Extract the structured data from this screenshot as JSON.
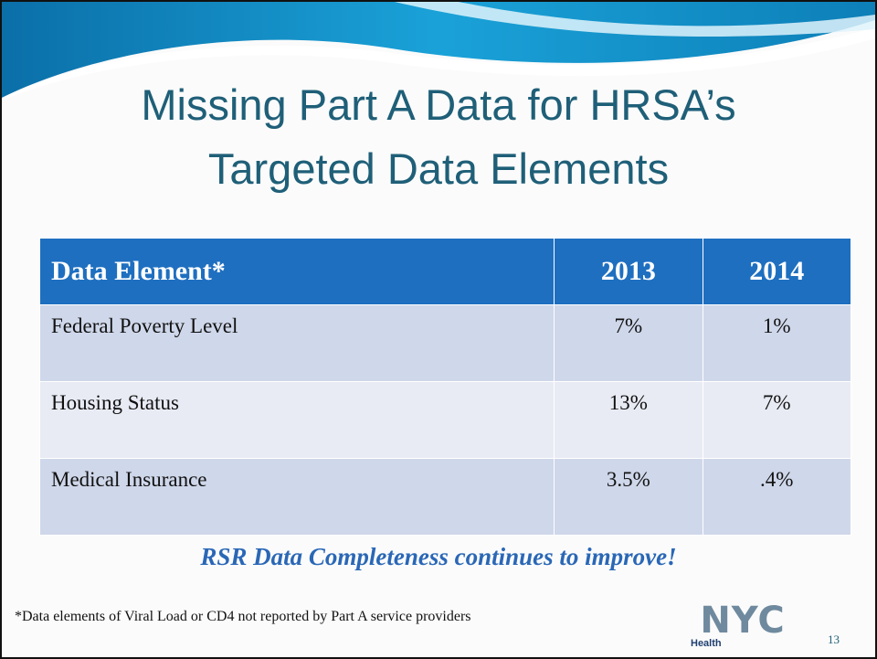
{
  "slide": {
    "title_lines": [
      "Missing Part A Data for HRSA’s",
      "Targeted Data Elements"
    ],
    "table": {
      "header": [
        "Data Element*",
        "2013",
        "2014"
      ],
      "rows": [
        [
          "Federal Poverty Level",
          "7%",
          "1%"
        ],
        [
          "Housing Status",
          "13%",
          "7%"
        ],
        [
          "Medical Insurance",
          "3.5%",
          ".4%"
        ]
      ]
    },
    "tagline": "RSR Data Completeness continues to improve!",
    "footnote": "*Data elements of Viral Load or CD4 not reported by Part A service providers",
    "logo": {
      "main": "NYC",
      "sub": "Health"
    },
    "page_number": "13"
  }
}
